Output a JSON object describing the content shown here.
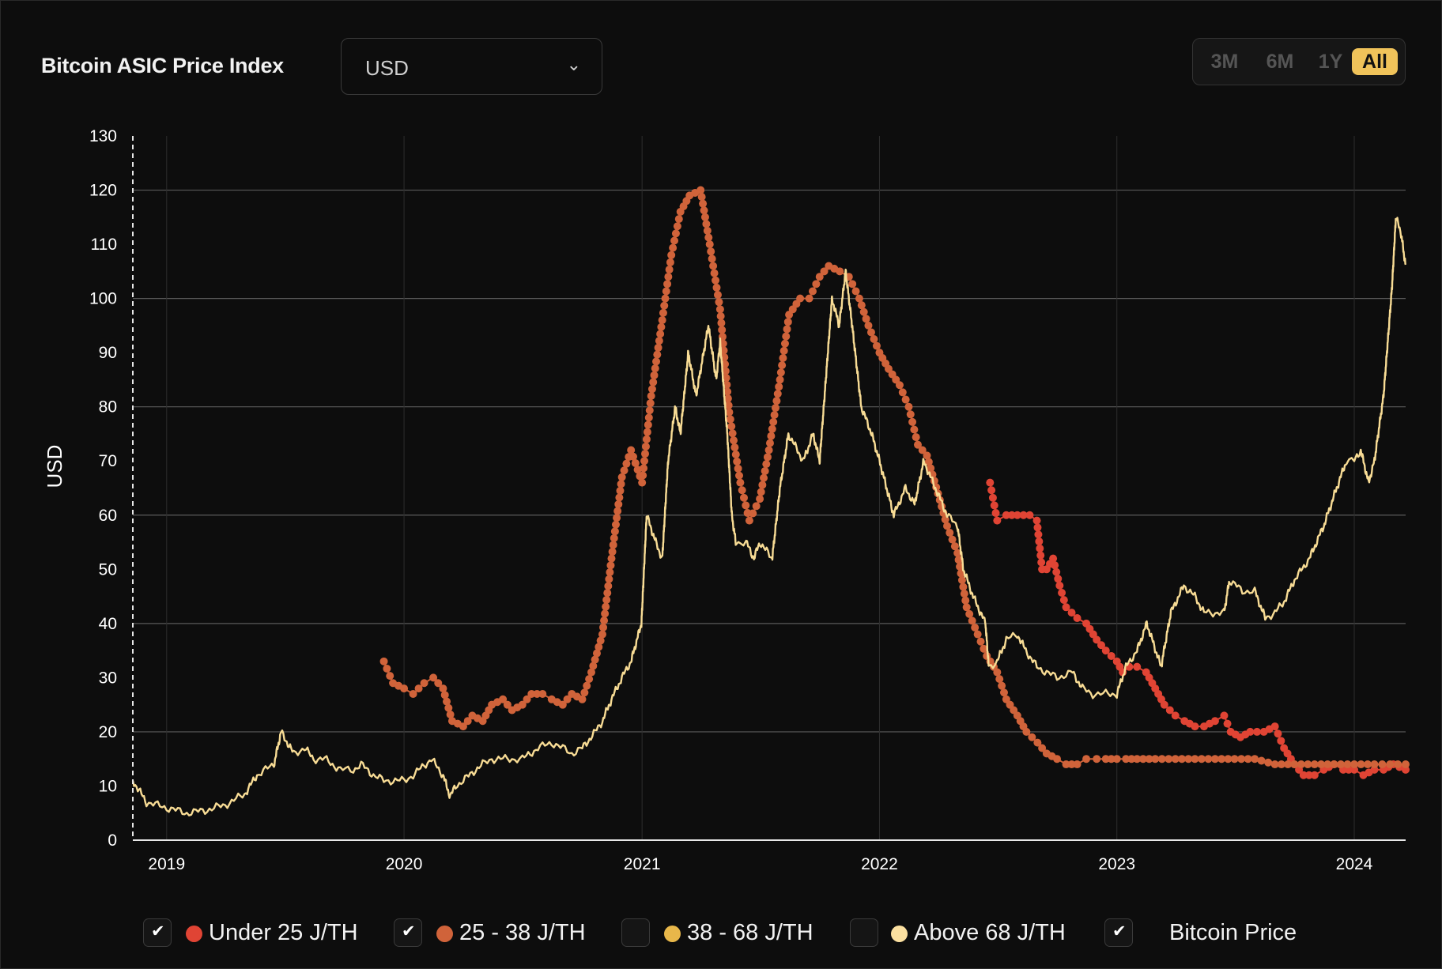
{
  "header": {
    "title": "Bitcoin ASIC Price Index",
    "currency_value": "USD",
    "range_options": [
      "3M",
      "6M",
      "1Y",
      "All"
    ],
    "active_range": "All"
  },
  "colors": {
    "background": "#0d0d0d",
    "under25": "#e04434",
    "range25_38": "#d0633a",
    "range38_68": "#e8b74a",
    "above68": "#fbe0a0",
    "bitcoin_price": "#f8dc95",
    "active_range_bg": "#f0c35a"
  },
  "legend": [
    {
      "label": "Under 25 J/TH",
      "checked": true,
      "color": "#e04434"
    },
    {
      "label": "25 - 38 J/TH",
      "checked": true,
      "color": "#d0633a"
    },
    {
      "label": "38 - 68 J/TH",
      "checked": false,
      "color": "#e8b74a"
    },
    {
      "label": "Above 68 J/TH",
      "checked": false,
      "color": "#fbe0a0"
    },
    {
      "label": "Bitcoin Price",
      "checked": true,
      "color": ""
    }
  ],
  "chart_data": {
    "type": "line",
    "title": "Bitcoin ASIC Price Index",
    "xlabel": "",
    "ylabel": "USD",
    "ylim": [
      0,
      130
    ],
    "xlim": [
      "2018-11-10",
      "2024-03-20"
    ],
    "y_ticks": [
      0,
      10,
      20,
      30,
      40,
      50,
      60,
      70,
      80,
      90,
      100,
      110,
      120,
      130
    ],
    "x_ticks": [
      "2019",
      "2020",
      "2021",
      "2022",
      "2023",
      "2024"
    ],
    "grid": "horizontal lines at 20, 40, 60, 80, 100, 120; vertical lines at year ticks",
    "legend_position": "bottom",
    "series": [
      {
        "name": "Under 25 J/TH",
        "marker": "dot",
        "x": [
          "2022-06-20",
          "2022-07-01",
          "2022-07-15",
          "2022-08-01",
          "2022-08-20",
          "2022-08-31",
          "2022-09-08",
          "2022-09-15",
          "2022-09-25",
          "2022-10-05",
          "2022-10-15",
          "2022-11-01",
          "2022-11-15",
          "2022-12-01",
          "2022-12-15",
          "2023-01-01",
          "2023-01-10",
          "2023-01-20",
          "2023-02-01",
          "2023-02-15",
          "2023-03-01",
          "2023-03-15",
          "2023-04-01",
          "2023-04-15",
          "2023-05-01",
          "2023-05-15",
          "2023-06-01",
          "2023-06-15",
          "2023-06-25",
          "2023-07-10",
          "2023-07-25",
          "2023-08-15",
          "2023-09-01",
          "2023-09-15",
          "2023-10-01",
          "2023-10-15",
          "2023-11-01",
          "2023-11-15",
          "2023-12-01",
          "2023-12-15",
          "2024-01-01",
          "2024-01-15",
          "2024-02-01",
          "2024-02-15",
          "2024-03-01",
          "2024-03-20"
        ],
        "values": [
          66,
          59,
          60,
          60,
          60,
          59,
          50,
          50,
          52,
          47,
          43,
          41,
          40,
          37,
          35,
          33,
          31,
          32,
          32,
          31,
          28,
          25,
          23,
          22,
          21,
          21,
          22,
          23,
          20,
          19,
          20,
          20,
          21,
          17,
          14,
          12,
          12,
          13,
          14,
          13,
          13,
          12,
          13,
          13,
          14,
          13
        ]
      },
      {
        "name": "25 - 38 J/TH",
        "marker": "dot",
        "x": [
          "2019-12-01",
          "2019-12-15",
          "2020-01-01",
          "2020-01-15",
          "2020-02-01",
          "2020-02-15",
          "2020-03-01",
          "2020-03-15",
          "2020-04-01",
          "2020-04-15",
          "2020-05-01",
          "2020-05-15",
          "2020-06-01",
          "2020-06-15",
          "2020-07-01",
          "2020-07-15",
          "2020-08-01",
          "2020-08-15",
          "2020-09-01",
          "2020-09-15",
          "2020-10-01",
          "2020-10-15",
          "2020-11-01",
          "2020-11-15",
          "2020-12-01",
          "2020-12-15",
          "2021-01-01",
          "2021-01-15",
          "2021-02-01",
          "2021-02-15",
          "2021-03-01",
          "2021-03-15",
          "2021-04-01",
          "2021-04-15",
          "2021-05-01",
          "2021-05-15",
          "2021-06-01",
          "2021-06-15",
          "2021-07-01",
          "2021-07-15",
          "2021-08-01",
          "2021-08-15",
          "2021-09-01",
          "2021-09-15",
          "2021-10-01",
          "2021-10-15",
          "2021-11-01",
          "2021-11-15",
          "2021-12-01",
          "2021-12-15",
          "2022-01-01",
          "2022-01-15",
          "2022-02-01",
          "2022-02-15",
          "2022-03-01",
          "2022-03-15",
          "2022-04-01",
          "2022-04-15",
          "2022-05-01",
          "2022-05-15",
          "2022-06-01",
          "2022-06-15",
          "2022-07-01",
          "2022-07-15",
          "2022-08-01",
          "2022-08-15",
          "2022-09-01",
          "2022-09-15",
          "2022-10-01",
          "2022-10-15",
          "2022-11-01",
          "2022-11-15",
          "2022-12-01",
          "2022-12-15",
          "2023-01-01",
          "2023-01-15",
          "2023-02-01",
          "2023-03-01",
          "2023-04-01",
          "2023-05-01",
          "2023-06-01",
          "2023-07-01",
          "2023-08-01",
          "2023-09-01",
          "2023-10-01",
          "2023-11-01",
          "2023-12-01",
          "2024-01-01",
          "2024-02-01",
          "2024-03-20"
        ],
        "values": [
          33,
          29,
          28,
          27,
          29,
          30,
          28,
          22,
          21,
          23,
          22,
          25,
          26,
          24,
          25,
          27,
          27,
          26,
          25,
          27,
          26,
          31,
          38,
          52,
          67,
          72,
          66,
          82,
          96,
          108,
          116,
          119,
          120,
          110,
          98,
          79,
          66,
          59,
          63,
          72,
          85,
          97,
          100,
          100,
          104,
          106,
          105,
          104,
          100,
          95,
          90,
          87,
          84,
          80,
          73,
          71,
          64,
          58,
          53,
          43,
          38,
          34,
          31,
          26,
          23,
          20,
          18,
          16,
          15,
          14,
          14,
          15,
          15,
          15,
          15,
          15,
          15,
          15,
          15,
          15,
          15,
          15,
          15,
          14,
          14,
          14,
          14,
          14,
          14,
          14
        ]
      },
      {
        "name": "Bitcoin Price",
        "marker": "line",
        "x": [
          "2018-11-10",
          "2018-12-01",
          "2019-01-01",
          "2019-02-01",
          "2019-03-01",
          "2019-04-01",
          "2019-05-01",
          "2019-05-20",
          "2019-06-15",
          "2019-06-26",
          "2019-07-15",
          "2019-08-01",
          "2019-08-15",
          "2019-09-01",
          "2019-09-25",
          "2019-10-15",
          "2019-10-27",
          "2019-11-15",
          "2019-12-01",
          "2019-12-15",
          "2020-01-01",
          "2020-01-15",
          "2020-02-12",
          "2020-03-01",
          "2020-03-12",
          "2020-03-20",
          "2020-04-01",
          "2020-04-20",
          "2020-05-01",
          "2020-05-15",
          "2020-06-01",
          "2020-06-15",
          "2020-07-01",
          "2020-07-25",
          "2020-08-15",
          "2020-09-01",
          "2020-09-15",
          "2020-10-01",
          "2020-10-21",
          "2020-11-01",
          "2020-11-15",
          "2020-12-01",
          "2020-12-15",
          "2020-12-31",
          "2021-01-08",
          "2021-01-22",
          "2021-02-01",
          "2021-02-10",
          "2021-02-21",
          "2021-03-01",
          "2021-03-13",
          "2021-03-25",
          "2021-04-13",
          "2021-04-25",
          "2021-05-01",
          "2021-05-12",
          "2021-05-19",
          "2021-05-25",
          "2021-06-10",
          "2021-06-22",
          "2021-07-01",
          "2021-07-20",
          "2021-08-01",
          "2021-08-14",
          "2021-09-06",
          "2021-09-21",
          "2021-10-01",
          "2021-10-20",
          "2021-10-31",
          "2021-11-10",
          "2021-11-20",
          "2021-12-04",
          "2021-12-20",
          "2022-01-01",
          "2022-01-23",
          "2022-02-10",
          "2022-02-24",
          "2022-03-10",
          "2022-03-28",
          "2022-04-15",
          "2022-05-01",
          "2022-05-10",
          "2022-05-25",
          "2022-06-13",
          "2022-06-18",
          "2022-07-01",
          "2022-07-15",
          "2022-08-01",
          "2022-08-14",
          "2022-08-31",
          "2022-09-15",
          "2022-10-01",
          "2022-10-25",
          "2022-11-09",
          "2022-11-25",
          "2022-12-15",
          "2023-01-01",
          "2023-01-15",
          "2023-02-01",
          "2023-02-16",
          "2023-03-10",
          "2023-03-25",
          "2023-04-14",
          "2023-05-01",
          "2023-05-15",
          "2023-06-15",
          "2023-06-23",
          "2023-07-13",
          "2023-08-01",
          "2023-08-17",
          "2023-09-01",
          "2023-09-15",
          "2023-10-01",
          "2023-10-24",
          "2023-11-15",
          "2023-12-05",
          "2023-12-20",
          "2024-01-01",
          "2024-01-11",
          "2024-01-23",
          "2024-02-01",
          "2024-02-15",
          "2024-02-28",
          "2024-03-05",
          "2024-03-13",
          "2024-03-20"
        ],
        "values": [
          11,
          7,
          6,
          5,
          5.5,
          6.5,
          8.5,
          12,
          14,
          20,
          16,
          17,
          15,
          15,
          13,
          13,
          14,
          12,
          11,
          11,
          11,
          12,
          15,
          12,
          8,
          10,
          11,
          13,
          14,
          15,
          15,
          15,
          15,
          17,
          18,
          17,
          16,
          17,
          20,
          22,
          26,
          30,
          33,
          40,
          60,
          55,
          52,
          70,
          80,
          75,
          90,
          82,
          95,
          85,
          92,
          75,
          60,
          55,
          55,
          52,
          55,
          52,
          65,
          75,
          70,
          75,
          70,
          100,
          95,
          105,
          95,
          80,
          75,
          70,
          60,
          65,
          62,
          70,
          65,
          60,
          58,
          50,
          45,
          40,
          32,
          33,
          37,
          38,
          35,
          32,
          31,
          30,
          31,
          28,
          27,
          27,
          27,
          32,
          35,
          40,
          32,
          42,
          47,
          45,
          42,
          42,
          48,
          46,
          46,
          41,
          42,
          44,
          48,
          52,
          58,
          65,
          70,
          70,
          72,
          66,
          70,
          82,
          102,
          115,
          112,
          106
        ]
      }
    ]
  }
}
